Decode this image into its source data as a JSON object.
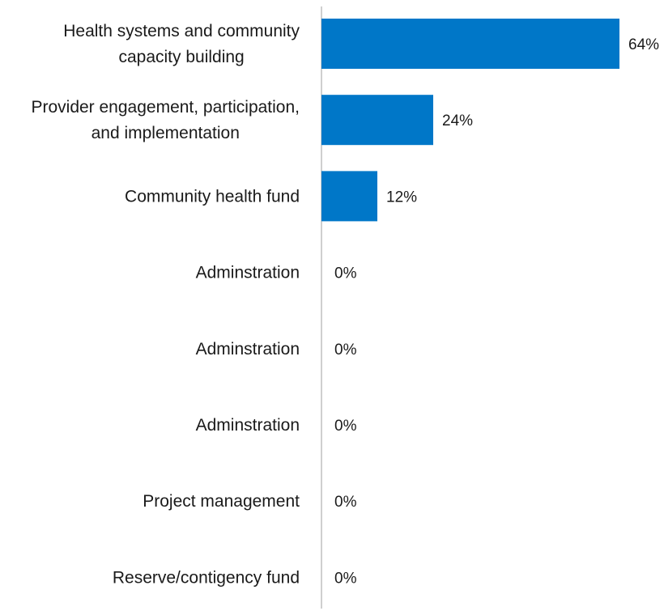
{
  "chart_data": {
    "type": "bar",
    "orientation": "horizontal",
    "categories": [
      "Health systems and community capacity building",
      "Provider engagement, participation, and implementation",
      "Community health fund",
      "Adminstration",
      "Adminstration",
      "Adminstration",
      "Project management",
      "Reserve/contigency fund"
    ],
    "category_lines": [
      [
        "Health systems and community",
        "capacity building"
      ],
      [
        "Provider engagement, participation,",
        "and implementation"
      ],
      [
        "Community health fund"
      ],
      [
        "Adminstration"
      ],
      [
        "Adminstration"
      ],
      [
        "Adminstration"
      ],
      [
        "Project management"
      ],
      [
        "Reserve/contigency fund"
      ]
    ],
    "values": [
      64,
      24,
      12,
      0,
      0,
      0,
      0,
      0
    ],
    "value_labels": [
      "64%",
      "24%",
      "12%",
      "0%",
      "0%",
      "0%",
      "0%",
      "0%"
    ],
    "title": "",
    "xlabel": "",
    "ylabel": "",
    "xlim": [
      0,
      64
    ],
    "grid": false,
    "legend": "none",
    "colors": {
      "bar": "#0077c8",
      "axis": "#bfbfbf",
      "text": "#1a1a1a"
    }
  }
}
